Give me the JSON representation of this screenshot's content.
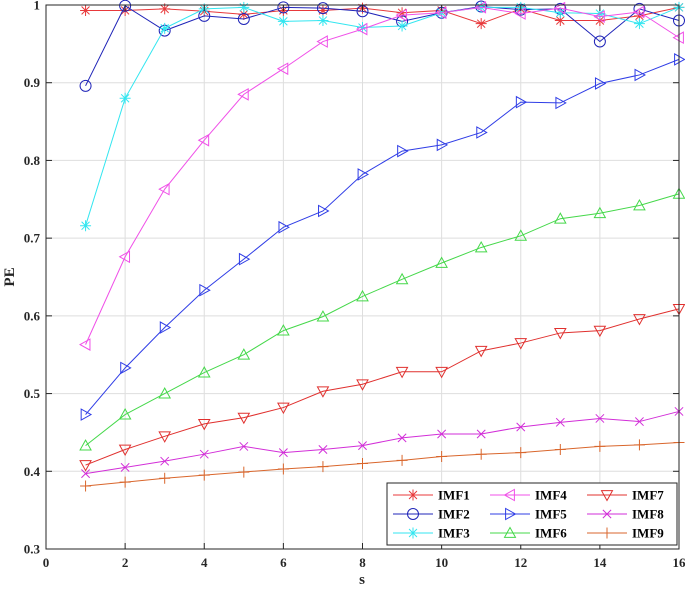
{
  "chart_data": {
    "type": "line",
    "xlabel": "s",
    "ylabel": "PE",
    "xlim": [
      0,
      16
    ],
    "ylim": [
      0.3,
      1
    ],
    "xticks": [
      0,
      2,
      4,
      6,
      8,
      10,
      12,
      14,
      16
    ],
    "yticks": [
      0.3,
      0.4,
      0.5,
      0.6,
      0.7,
      0.8,
      0.9,
      1
    ],
    "ytick_labels": [
      "0.3",
      "0.4",
      "0.5",
      "0.6",
      "0.7",
      "0.8",
      "0.9",
      "1"
    ],
    "grid": true,
    "legend_position": "bottom-right",
    "legend_columns": 3,
    "x": [
      1,
      2,
      3,
      4,
      5,
      6,
      7,
      8,
      9,
      10,
      11,
      12,
      13,
      14,
      15,
      16
    ],
    "series": [
      {
        "name": "IMF1",
        "color": "#e8393b",
        "marker": "asterisk",
        "values": [
          0.993,
          0.993,
          0.995,
          0.992,
          0.988,
          0.993,
          0.993,
          0.996,
          0.99,
          0.993,
          0.976,
          0.995,
          0.98,
          0.98,
          0.986,
          0.997
        ]
      },
      {
        "name": "IMF2",
        "color": "#1f24b8",
        "marker": "circle",
        "values": [
          0.896,
          0.999,
          0.967,
          0.986,
          0.982,
          0.997,
          0.996,
          0.992,
          0.979,
          0.99,
          0.998,
          0.994,
          0.995,
          0.953,
          0.995,
          0.98
        ]
      },
      {
        "name": "IMF3",
        "color": "#33e6f0",
        "marker": "asterisk",
        "values": [
          0.716,
          0.88,
          0.97,
          0.995,
          0.997,
          0.979,
          0.98,
          0.971,
          0.973,
          0.99,
          0.997,
          0.997,
          0.99,
          0.989,
          0.976,
          0.997
        ]
      },
      {
        "name": "IMF4",
        "color": "#f050e8",
        "marker": "triangle-left",
        "values": [
          0.563,
          0.676,
          0.763,
          0.826,
          0.885,
          0.918,
          0.953,
          0.969,
          0.987,
          0.99,
          0.997,
          0.989,
          0.996,
          0.985,
          0.991,
          0.958
        ]
      },
      {
        "name": "IMF5",
        "color": "#2f3de6",
        "marker": "triangle-right",
        "values": [
          0.473,
          0.533,
          0.585,
          0.633,
          0.673,
          0.714,
          0.735,
          0.782,
          0.812,
          0.82,
          0.836,
          0.875,
          0.874,
          0.899,
          0.91,
          0.93
        ]
      },
      {
        "name": "IMF6",
        "color": "#45d84a",
        "marker": "triangle-up",
        "values": [
          0.433,
          0.473,
          0.5,
          0.527,
          0.55,
          0.581,
          0.599,
          0.625,
          0.647,
          0.668,
          0.688,
          0.703,
          0.725,
          0.732,
          0.742,
          0.757
        ]
      },
      {
        "name": "IMF7",
        "color": "#e0302e",
        "marker": "triangle-down",
        "values": [
          0.408,
          0.428,
          0.445,
          0.461,
          0.469,
          0.482,
          0.503,
          0.512,
          0.528,
          0.528,
          0.555,
          0.565,
          0.578,
          0.581,
          0.596,
          0.609
        ]
      },
      {
        "name": "IMF8",
        "color": "#d22ed8",
        "marker": "cross",
        "values": [
          0.397,
          0.405,
          0.413,
          0.422,
          0.432,
          0.424,
          0.428,
          0.433,
          0.443,
          0.448,
          0.448,
          0.457,
          0.463,
          0.468,
          0.464,
          0.477
        ]
      },
      {
        "name": "IMF9",
        "color": "#d9662c",
        "marker": "plus",
        "values": [
          0.381,
          0.386,
          0.391,
          0.395,
          0.399,
          0.403,
          0.406,
          0.41,
          0.414,
          0.419,
          0.422,
          0.424,
          0.428,
          0.432,
          0.434,
          0.437
        ]
      }
    ]
  }
}
